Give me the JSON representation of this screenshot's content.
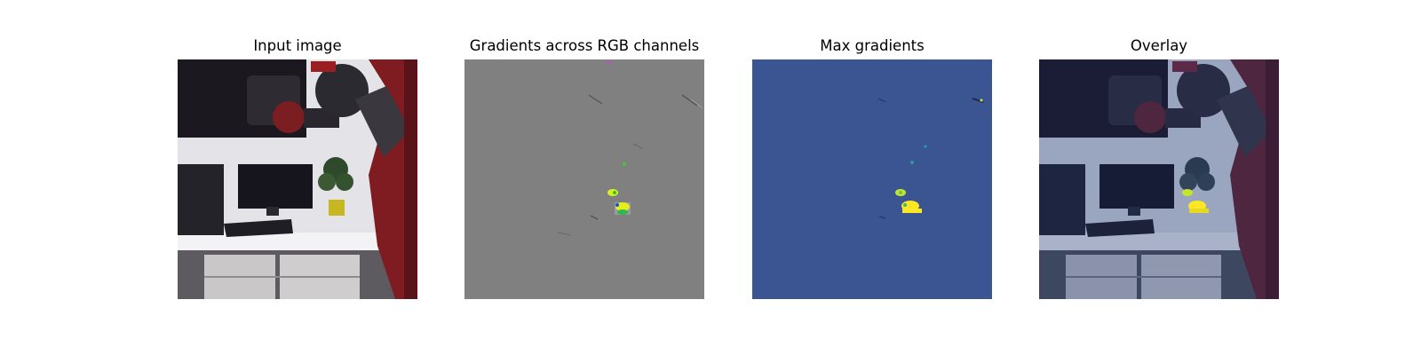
{
  "figure": {
    "panels": [
      {
        "id": "input",
        "title": "Input image"
      },
      {
        "id": "gradients-rgb",
        "title": "Gradients across RGB channels"
      },
      {
        "id": "max-gradients",
        "title": "Max gradients"
      },
      {
        "id": "overlay",
        "title": "Overlay"
      }
    ]
  },
  "colors": {
    "gradient_background": "#808080",
    "max_gradient_background": "#3b528b",
    "highlight_yellow": "#fde725",
    "highlight_green": "#5ec962",
    "robot_red": "#8b1e22",
    "robot_dark": "#1d1a22",
    "wall": "#e6e6ea",
    "desk": "#f2f2f4"
  }
}
